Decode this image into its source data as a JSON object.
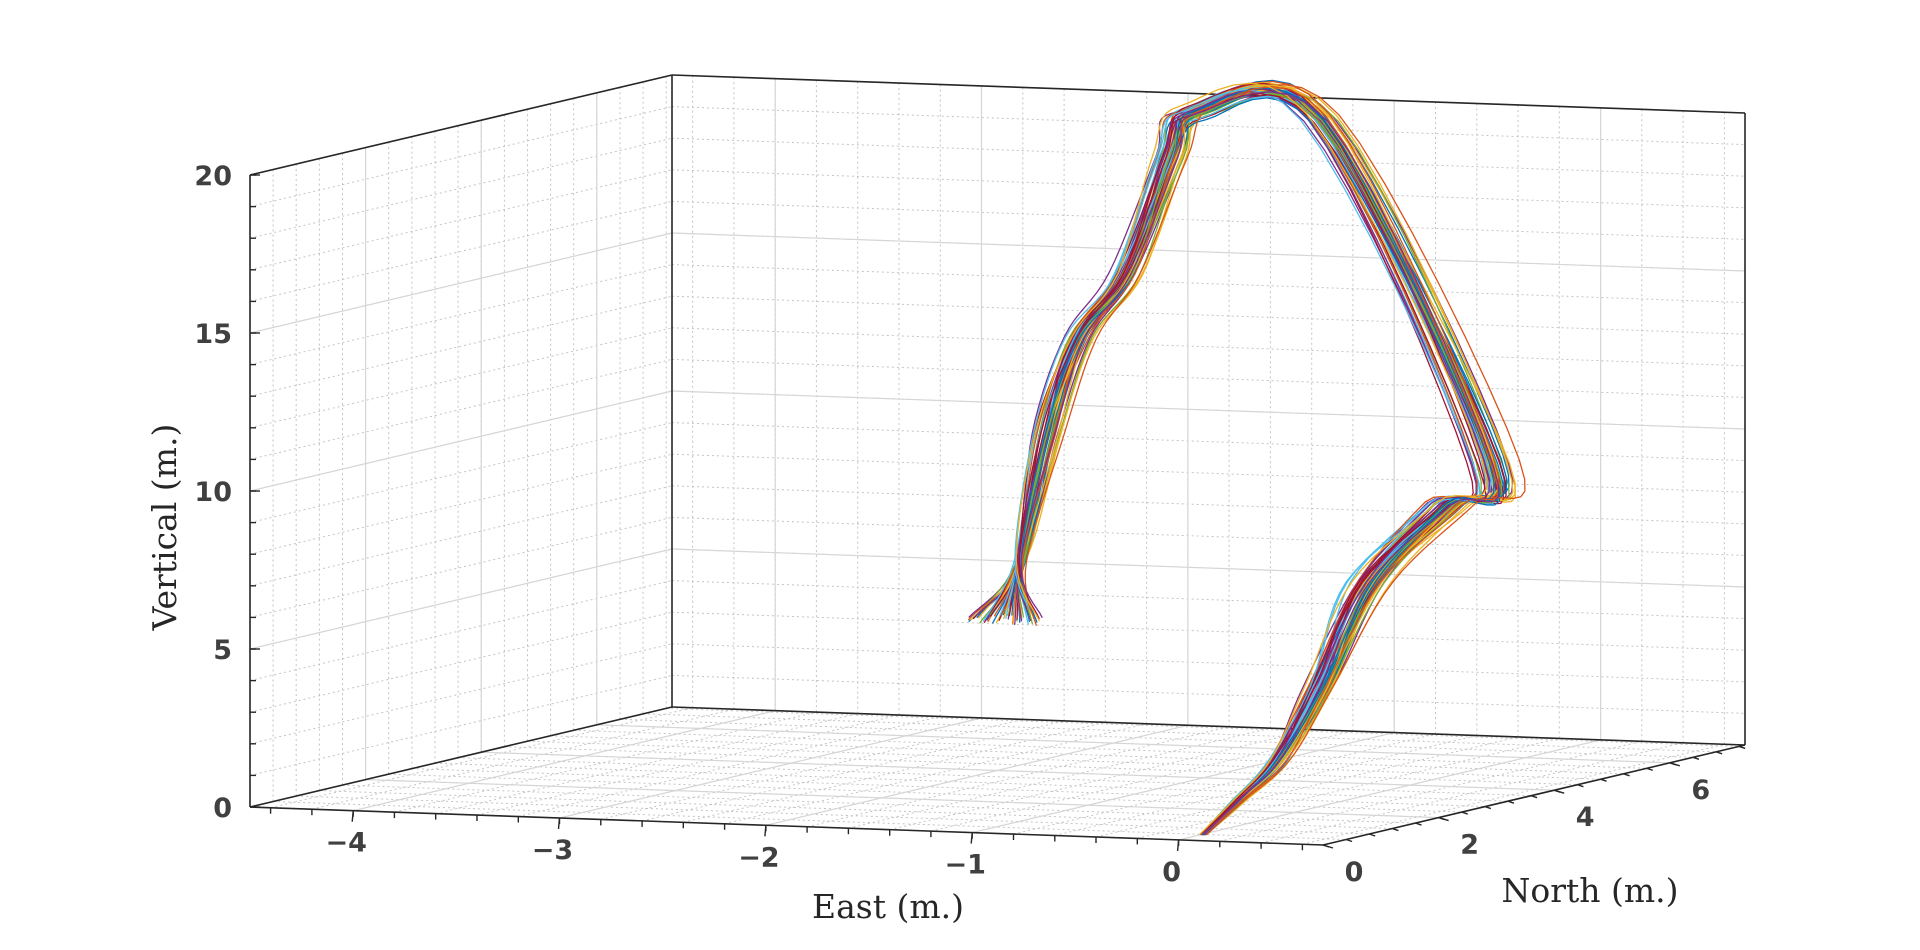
{
  "chart_data": {
    "type": "line3d",
    "title": "",
    "axes": {
      "x": {
        "label": "East (m.)",
        "range": [
          -4.5,
          0.7
        ],
        "ticks": [
          -4,
          -3,
          -2,
          -1,
          0
        ],
        "tick_labels": [
          "−4",
          "−3",
          "−2",
          "−1",
          "0"
        ]
      },
      "y": {
        "label": "North (m.)",
        "range": [
          0,
          7.3
        ],
        "ticks": [
          0,
          2,
          4,
          6
        ],
        "tick_labels": [
          "0",
          "2",
          "4",
          "6"
        ]
      },
      "z": {
        "label": "Vertical (m.)",
        "range": [
          0,
          20
        ],
        "ticks": [
          0,
          5,
          10,
          15,
          20
        ],
        "tick_labels": [
          "0",
          "5",
          "10",
          "15",
          "20"
        ]
      }
    },
    "grid": true,
    "series_count": 60,
    "series_colors": [
      "#0072BD",
      "#D95319",
      "#EDB120",
      "#7E2F8E",
      "#77AC30",
      "#4DBEEE",
      "#A2142F"
    ],
    "mean_path": {
      "x": [
        0.12,
        0.12,
        0.12,
        0.1,
        0.14,
        0.22,
        0.22,
        -1.0,
        -1.65,
        -1.72,
        -1.85,
        -2.05,
        -2.15,
        -2.25,
        -2.3
      ],
      "y": [
        0.0,
        0.6,
        1.3,
        2.1,
        2.8,
        3.9,
        4.6,
        6.0,
        6.2,
        6.0,
        5.7,
        5.6,
        5.4,
        5.3,
        5.2
      ],
      "z": [
        0.2,
        1.0,
        2.0,
        4.0,
        7.0,
        9.0,
        10.0,
        20.0,
        20.0,
        18.6,
        15.0,
        13.0,
        10.0,
        6.0,
        4.2
      ]
    }
  }
}
